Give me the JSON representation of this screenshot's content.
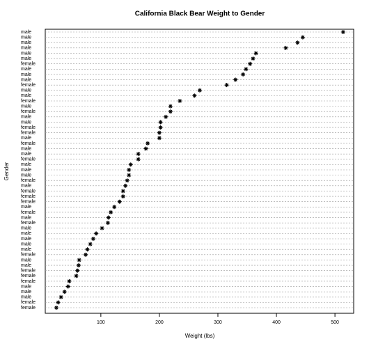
{
  "chart_data": {
    "type": "dotchart",
    "title": "California Black Bear Weight to Gender",
    "x_label": "Weight (lbs)",
    "y_label": "Gender",
    "categories": [
      "male",
      "male",
      "male",
      "male",
      "male",
      "male",
      "female",
      "male",
      "male",
      "male",
      "female",
      "male",
      "male",
      "female",
      "male",
      "female",
      "male",
      "male",
      "female",
      "female",
      "male",
      "female",
      "male",
      "male",
      "female",
      "male",
      "male",
      "male",
      "female",
      "male",
      "female",
      "female",
      "female",
      "male",
      "female",
      "male",
      "female",
      "male",
      "male",
      "male",
      "male",
      "male",
      "female",
      "male",
      "male",
      "female",
      "female",
      "female",
      "male",
      "male",
      "male",
      "female",
      "female"
    ],
    "values": [
      514,
      445,
      436,
      416,
      365,
      360,
      355,
      348,
      343,
      330,
      315,
      269,
      260,
      235,
      219,
      219,
      211,
      202,
      202,
      200,
      200,
      180,
      177,
      164,
      164,
      151,
      148,
      148,
      145,
      142,
      138,
      138,
      132,
      123,
      117,
      113,
      112,
      102,
      92,
      87,
      82,
      77,
      74,
      63,
      62,
      60,
      58,
      46,
      44,
      38,
      32,
      27,
      24
    ],
    "color": "#000000",
    "xlim": [
      5,
      532
    ],
    "xticks": [
      100,
      200,
      300,
      400,
      500
    ],
    "grid": true
  }
}
